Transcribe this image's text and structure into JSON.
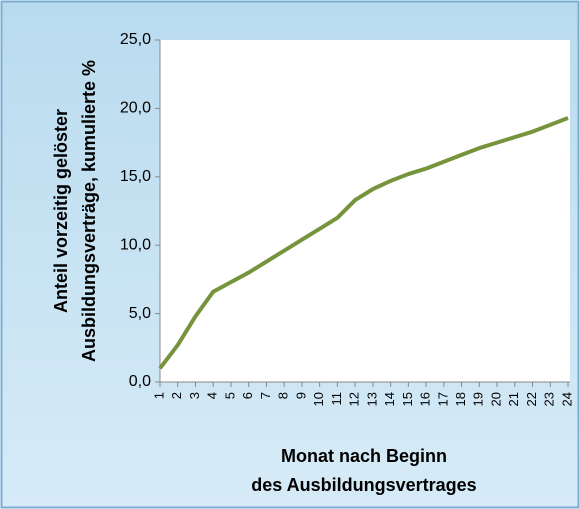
{
  "chart_data": {
    "type": "line",
    "xlabel": [
      "Monat nach Beginn",
      "des Ausbildungsvertrages"
    ],
    "ylabel": [
      "Anteil vorzeitig gelöster",
      "Ausbildungsverträge, kumulierte %"
    ],
    "categories": [
      1,
      2,
      3,
      4,
      5,
      6,
      7,
      8,
      9,
      10,
      11,
      12,
      13,
      14,
      15,
      16,
      17,
      18,
      19,
      20,
      21,
      22,
      23,
      24
    ],
    "series": [
      {
        "color": "#77933c",
        "values": [
          1.0,
          2.7,
          4.8,
          6.6,
          7.3,
          8.0,
          8.8,
          9.6,
          10.4,
          11.2,
          12.0,
          13.3,
          14.1,
          14.7,
          15.2,
          15.6,
          16.1,
          16.6,
          17.1,
          17.5,
          17.9,
          18.3,
          18.8,
          19.3
        ]
      }
    ],
    "ylim": [
      0,
      25
    ],
    "yticks": [
      {
        "value": 0,
        "label": "0,0"
      },
      {
        "value": 5,
        "label": "5,0"
      },
      {
        "value": 10,
        "label": "10,0"
      },
      {
        "value": 15,
        "label": "15,0"
      },
      {
        "value": 20,
        "label": "20,0"
      },
      {
        "value": 25,
        "label": "25,0"
      }
    ]
  }
}
